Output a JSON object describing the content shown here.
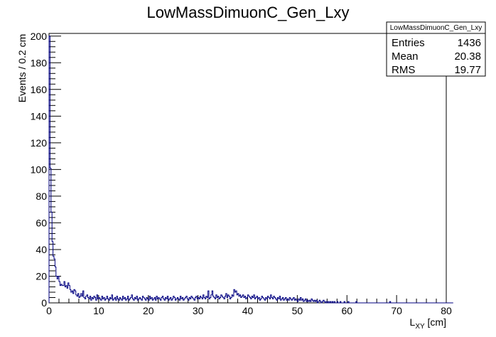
{
  "chart_data": {
    "type": "histogram",
    "title": "LowMassDimuonC_Gen_Lxy",
    "xlabel": "L",
    "xlabel_sub": "XY",
    "xlabel_unit": " [cm]",
    "ylabel": "Events / 0.2 cm",
    "xlim": [
      0,
      80
    ],
    "ylim": [
      0,
      202
    ],
    "bin_width": 0.2,
    "x_ticks": [
      0,
      10,
      20,
      30,
      40,
      50,
      60,
      70,
      80
    ],
    "y_ticks": [
      0,
      20,
      40,
      60,
      80,
      100,
      120,
      140,
      160,
      180,
      200
    ],
    "grid": false,
    "line_color": "#000080",
    "stats_box": {
      "title": "LowMassDimuonC_Gen_Lxy",
      "rows": [
        {
          "label": "Entries",
          "value": "1436"
        },
        {
          "label": "Mean",
          "value": "20.38"
        },
        {
          "label": "RMS",
          "value": "19.77"
        }
      ]
    },
    "bin_counts": [
      200,
      101,
      68,
      46,
      35,
      33,
      27,
      20,
      18,
      20,
      16,
      13,
      14,
      13,
      13,
      16,
      12,
      13,
      11,
      15,
      13,
      10,
      8,
      9,
      7,
      10,
      9,
      6,
      5,
      7,
      4,
      5,
      7,
      5,
      9,
      4,
      3,
      5,
      6,
      4,
      3,
      5,
      2,
      4,
      3,
      5,
      4,
      2,
      6,
      3,
      4,
      3,
      2,
      5,
      3,
      4,
      2,
      3,
      5,
      3,
      2,
      4,
      3,
      6,
      2,
      3,
      4,
      2,
      5,
      3,
      2,
      4,
      3,
      2,
      5,
      3,
      4,
      2,
      3,
      5,
      2,
      3,
      4,
      6,
      3,
      2,
      4,
      3,
      5,
      2,
      3,
      4,
      3,
      2,
      5,
      4,
      3,
      2,
      4,
      3,
      2,
      5,
      3,
      4,
      2,
      3,
      4,
      2,
      5,
      3,
      4,
      3,
      2,
      4,
      5,
      3,
      2,
      4,
      3,
      5,
      2,
      3,
      4,
      2,
      3,
      5,
      4,
      2,
      3,
      4,
      3,
      2,
      5,
      3,
      4,
      2,
      3,
      4,
      5,
      3,
      2,
      4,
      3,
      5,
      4,
      3,
      2,
      4,
      5,
      3,
      4,
      3,
      5,
      4,
      3,
      6,
      4,
      3,
      5,
      4,
      9,
      3,
      4,
      6,
      9,
      5,
      4,
      3,
      6,
      4,
      5,
      3,
      4,
      6,
      5,
      4,
      3,
      5,
      7,
      4,
      6,
      5,
      3,
      4,
      6,
      5,
      10,
      8,
      9,
      6,
      7,
      5,
      6,
      4,
      5,
      6,
      4,
      5,
      3,
      4,
      6,
      5,
      4,
      3,
      5,
      4,
      6,
      3,
      4,
      5,
      3,
      4,
      2,
      3,
      5,
      4,
      3,
      2,
      4,
      3,
      5,
      4,
      3,
      6,
      4,
      3,
      5,
      4,
      3,
      2,
      4,
      3,
      5,
      2,
      3,
      4,
      2,
      3,
      4,
      2,
      3,
      2,
      4,
      3,
      2,
      3,
      4,
      2,
      3,
      2,
      1,
      3,
      2,
      4,
      2,
      3,
      1,
      2,
      3,
      1,
      2,
      1,
      2,
      1,
      3,
      2,
      1,
      2,
      1,
      2,
      0,
      1,
      2,
      1,
      0,
      1,
      2,
      1,
      0,
      1,
      0,
      1,
      0,
      1,
      0,
      1,
      0,
      1,
      0,
      0,
      1,
      0,
      0,
      1,
      0,
      0,
      0,
      1,
      0,
      0,
      0,
      1,
      0,
      0,
      0,
      0,
      0,
      0,
      0,
      1,
      0,
      0,
      0,
      0,
      0,
      0,
      0,
      0,
      0,
      0,
      0,
      0,
      0,
      0,
      0,
      0,
      0,
      0,
      0,
      0,
      0,
      0,
      0,
      0,
      0,
      0,
      0,
      0,
      0,
      0,
      0,
      0,
      0,
      1,
      0,
      0,
      0,
      0,
      0,
      0,
      0,
      0,
      0,
      0,
      0,
      0,
      0,
      0,
      0,
      0,
      0,
      0,
      0,
      0,
      0,
      0,
      0,
      0,
      0,
      0,
      0,
      0,
      0,
      0,
      0,
      0,
      0,
      0,
      0,
      0,
      0,
      0,
      0,
      0,
      0,
      0,
      0,
      0,
      0,
      0,
      0,
      0,
      0,
      0,
      0,
      0,
      0,
      0,
      0,
      0,
      0,
      0,
      0,
      0,
      0,
      0,
      0
    ]
  }
}
